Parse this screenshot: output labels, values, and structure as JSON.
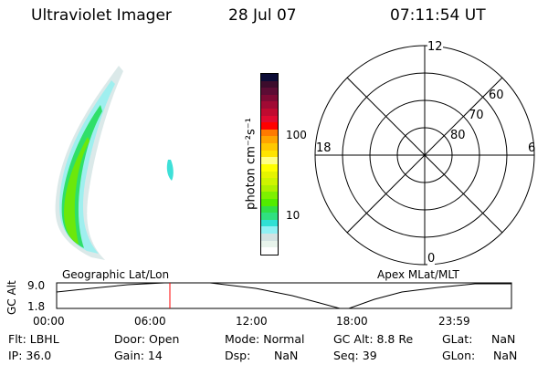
{
  "header": {
    "instrument": "Ultraviolet Imager",
    "date": "28 Jul 07",
    "time": "07:11:54 UT"
  },
  "colorbar": {
    "label": "photon cm⁻²s⁻¹",
    "ticks": [
      "100",
      "10"
    ],
    "colors": [
      "#0c0c36",
      "#3c0c2c",
      "#5c0c34",
      "#7e0a34",
      "#a00a34",
      "#c00a30",
      "#e00a30",
      "#ff0000",
      "#ff7a00",
      "#ffa400",
      "#ffc800",
      "#ffe400",
      "#ffff84",
      "#ffff00",
      "#e6f400",
      "#cef400",
      "#aef000",
      "#7ef000",
      "#52ec00",
      "#30e048",
      "#30e080",
      "#30e0d4",
      "#90f0f4",
      "#d2e2e2",
      "#e8f4ec",
      "#ffffff"
    ]
  },
  "polar": {
    "mlt_labels": {
      "top": "12",
      "left": "18",
      "right": "6",
      "bottom": "0"
    },
    "lat_labels": [
      "60",
      "70",
      "80"
    ]
  },
  "labels": {
    "left_caption": "Geographic Lat/Lon",
    "right_caption": "Apex MLat/MLT"
  },
  "altitude_plot": {
    "ylabel": "GC Alt",
    "yticks": [
      "9.0",
      "1.8"
    ],
    "xticks": [
      "00:00",
      "06:00",
      "12:00",
      "18:00",
      "23:59"
    ],
    "current_time_marker_color": "#ff0000"
  },
  "info": {
    "filter": "Flt: LBHL",
    "ip": "IP: 36.0",
    "door": "Door: Open",
    "gain": "Gain: 14",
    "mode": "Mode: Normal",
    "dsp_label": "Dsp:",
    "dsp_value": "NaN",
    "gc_alt": "GC Alt: 8.8 Re",
    "seq": "Seq: 39",
    "glat_label": "GLat:",
    "glat_value": "NaN",
    "glon_label": "GLon:",
    "glon_value": "NaN"
  }
}
